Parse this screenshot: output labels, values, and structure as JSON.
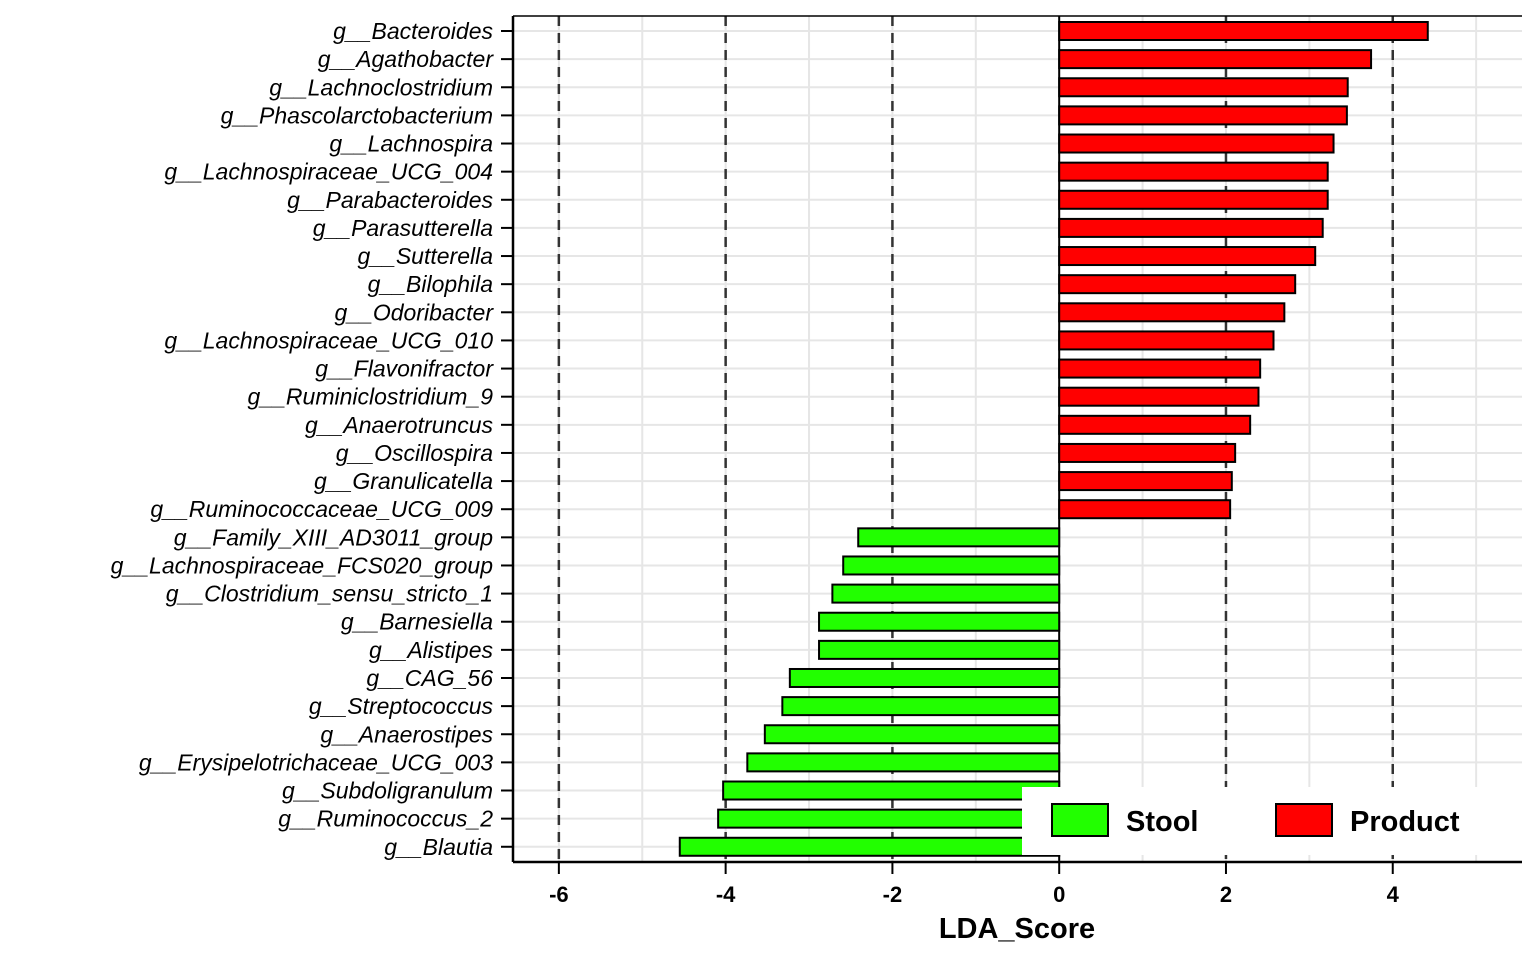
{
  "chart_data": {
    "type": "bar",
    "orientation": "horizontal",
    "xlabel": "LDA_Score",
    "ylabel": "",
    "xlim": [
      -6.55,
      5.55
    ],
    "xticks": [
      -6,
      -4,
      -2,
      0,
      2,
      4
    ],
    "xtick_labels": [
      "-6",
      "-4",
      "-2",
      "0",
      "2",
      "4"
    ],
    "dashed_reference_lines": [
      -6,
      -4,
      -2,
      0,
      2,
      4
    ],
    "grid": true,
    "legend_position": "bottom-right",
    "colors": {
      "Stool": "#22ff00",
      "Product": "#ff0000",
      "edge": "#000000",
      "grid": "#e6e6e6"
    },
    "legend": [
      {
        "name": "Stool",
        "color": "#22ff00"
      },
      {
        "name": "Product",
        "color": "#ff0000"
      }
    ],
    "categories": [
      "g__Bacteroides",
      "g__Agathobacter",
      "g__Lachnoclostridium",
      "g__Phascolarctobacterium",
      "g__Lachnospira",
      "g__Lachnospiraceae_UCG_004",
      "g__Parabacteroides",
      "g__Parasutterella",
      "g__Sutterella",
      "g__Bilophila",
      "g__Odoribacter",
      "g__Lachnospiraceae_UCG_010",
      "g__Flavonifractor",
      "g__Ruminiclostridium_9",
      "g__Anaerotruncus",
      "g__Oscillospira",
      "g__Granulicatella",
      "g__Ruminococcaceae_UCG_009",
      "g__Family_XIII_AD3011_group",
      "g__Lachnospiraceae_FCS020_group",
      "g__Clostridium_sensu_stricto_1",
      "g__Barnesiella",
      "g__Alistipes",
      "g__CAG_56",
      "g__Streptococcus",
      "g__Anaerostipes",
      "g__Erysipelotrichaceae_UCG_003",
      "g__Subdoligranulum",
      "g__Ruminococcus_2",
      "g__Blautia"
    ],
    "values": [
      4.42,
      3.74,
      3.46,
      3.45,
      3.29,
      3.22,
      3.22,
      3.16,
      3.07,
      2.83,
      2.7,
      2.57,
      2.41,
      2.39,
      2.29,
      2.11,
      2.07,
      2.05,
      -2.41,
      -2.59,
      -2.72,
      -2.88,
      -2.88,
      -3.23,
      -3.32,
      -3.53,
      -3.74,
      -4.03,
      -4.09,
      -4.55
    ],
    "groups": [
      "Product",
      "Product",
      "Product",
      "Product",
      "Product",
      "Product",
      "Product",
      "Product",
      "Product",
      "Product",
      "Product",
      "Product",
      "Product",
      "Product",
      "Product",
      "Product",
      "Product",
      "Product",
      "Stool",
      "Stool",
      "Stool",
      "Stool",
      "Stool",
      "Stool",
      "Stool",
      "Stool",
      "Stool",
      "Stool",
      "Stool",
      "Stool"
    ]
  }
}
